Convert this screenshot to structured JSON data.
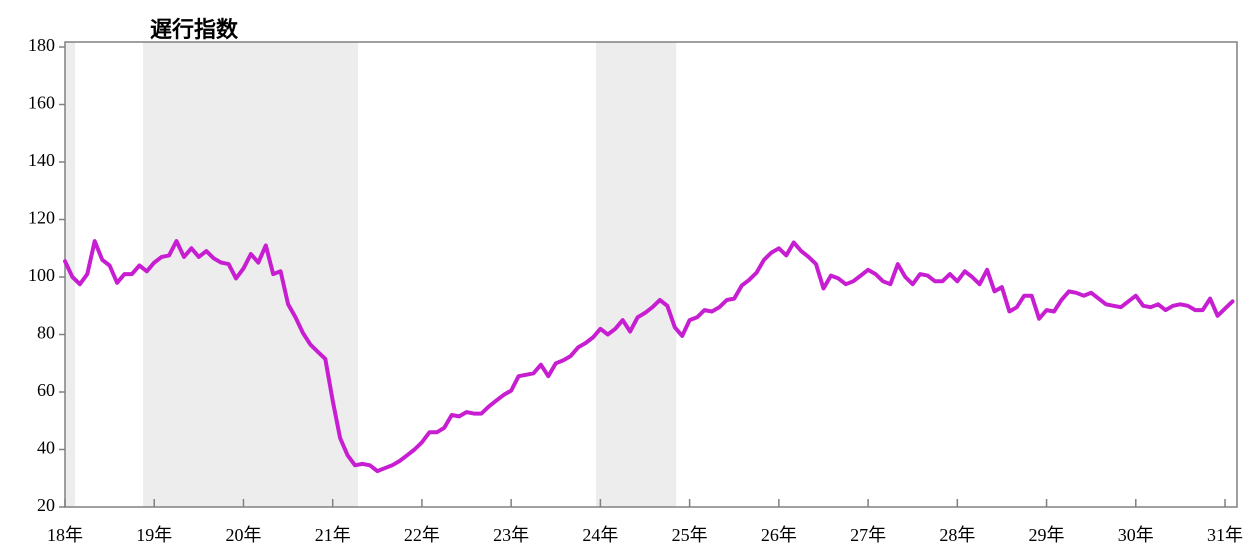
{
  "chart_data": {
    "type": "line",
    "title": "遅行指数",
    "categories": [
      "18年",
      null,
      null,
      null,
      null,
      null,
      null,
      null,
      null,
      null,
      null,
      null,
      "19年",
      null,
      null,
      null,
      null,
      null,
      null,
      null,
      null,
      null,
      null,
      null,
      "20年",
      null,
      null,
      null,
      null,
      null,
      null,
      null,
      null,
      null,
      null,
      null,
      "21年",
      null,
      null,
      null,
      null,
      null,
      null,
      null,
      null,
      null,
      null,
      null,
      "22年",
      null,
      null,
      null,
      null,
      null,
      null,
      null,
      null,
      null,
      null,
      null,
      "23年",
      null,
      null,
      null,
      null,
      null,
      null,
      null,
      null,
      null,
      null,
      null,
      "24年",
      null,
      null,
      null,
      null,
      null,
      null,
      null,
      null,
      null,
      null,
      null,
      "25年",
      null,
      null,
      null,
      null,
      null,
      null,
      null,
      null,
      null,
      null,
      null,
      "26年",
      null,
      null,
      null,
      null,
      null,
      null,
      null,
      null,
      null,
      null,
      null,
      "27年",
      null,
      null,
      null,
      null,
      null,
      null,
      null,
      null,
      null,
      null,
      null,
      "28年",
      null,
      null,
      null,
      null,
      null,
      null,
      null,
      null,
      null,
      null,
      null,
      "29年",
      null,
      null,
      null,
      null,
      null,
      null,
      null,
      null,
      null,
      null,
      null,
      "30年",
      null,
      null,
      null,
      null,
      null,
      null,
      null,
      null,
      null,
      null,
      null,
      "31年",
      null
    ],
    "values": [
      105.5,
      100,
      97.5,
      101,
      112.5,
      106,
      104,
      98,
      101,
      101,
      104,
      102,
      105,
      107,
      107.5,
      112.5,
      107,
      110,
      107,
      109,
      106.5,
      105,
      104.5,
      99.5,
      103,
      108,
      105,
      111,
      101,
      102,
      90.5,
      86,
      80.5,
      76.5,
      74,
      71.5,
      57,
      44,
      38,
      34.5,
      35,
      34.5,
      32.5,
      33.5,
      34.5,
      36,
      38,
      40,
      42.5,
      46,
      46,
      47.5,
      52,
      51.5,
      53,
      52.5,
      52.5,
      55,
      57,
      59,
      60.5,
      65.5,
      66,
      66.5,
      69.5,
      65.5,
      70,
      71,
      72.5,
      75.5,
      77,
      79,
      82,
      80,
      82,
      85,
      81,
      86,
      87.5,
      89.5,
      92,
      90,
      82.5,
      79.5,
      85,
      86,
      88.5,
      88,
      89.5,
      92,
      92.5,
      97,
      99,
      101.5,
      106,
      108.5,
      110,
      107.5,
      112,
      109,
      107,
      104.5,
      96,
      100.5,
      99.5,
      97.5,
      98.5,
      100.5,
      102.5,
      101,
      98.5,
      97.5,
      104.5,
      100,
      97.5,
      101,
      100.5,
      98.5,
      98.5,
      101,
      98.5,
      102,
      100,
      97.5,
      102.5,
      95,
      96.5,
      88,
      89.5,
      93.5,
      93.5,
      85.5,
      88.5,
      88,
      92,
      95,
      94.5,
      93.5,
      94.5,
      92.5,
      90.5,
      90,
      89.5,
      91.5,
      93.5,
      90,
      89.5,
      90.5,
      88.5,
      90,
      90.5,
      90,
      88.5,
      88.5,
      92.5,
      86.5,
      89,
      91.5
    ],
    "color": "#c81ed2",
    "shaded_regions": [
      {
        "start": 0,
        "end": 1.35
      },
      {
        "start": 10.5,
        "end": 39.4
      },
      {
        "start": 71.4,
        "end": 82.2
      }
    ],
    "shade_color": "#ededed",
    "ylim": [
      20,
      180
    ],
    "yticks": [
      20,
      40,
      60,
      80,
      100,
      120,
      140,
      160,
      180
    ]
  }
}
